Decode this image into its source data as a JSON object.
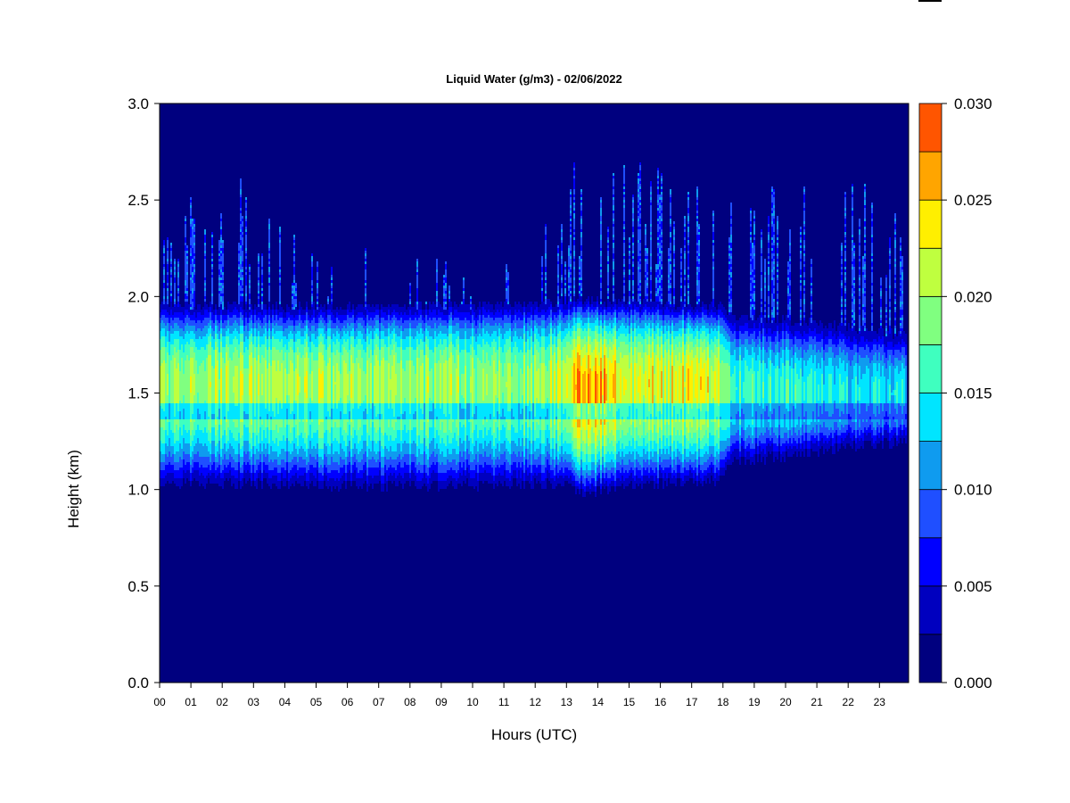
{
  "chart_data": {
    "type": "heatmap",
    "title": "Liquid Water (g/m3) - 02/06/2022",
    "xlabel": "Hours (UTC)",
    "ylabel": "Height (km)",
    "x_tick_labels": [
      "00",
      "01",
      "02",
      "03",
      "04",
      "05",
      "06",
      "07",
      "08",
      "09",
      "10",
      "11",
      "12",
      "13",
      "14",
      "15",
      "16",
      "17",
      "18",
      "19",
      "20",
      "21",
      "22",
      "23"
    ],
    "y_ticks": [
      0.0,
      0.5,
      1.0,
      1.5,
      2.0,
      2.5,
      3.0
    ],
    "y_tick_labels": [
      "0.0",
      "0.5",
      "1.0",
      "1.5",
      "2.0",
      "2.5",
      "3.0"
    ],
    "xlim": [
      0,
      23.85
    ],
    "ylim": [
      0,
      3.0
    ],
    "colorbar": {
      "levels": [
        0.0,
        0.0025,
        0.005,
        0.0075,
        0.01,
        0.0125,
        0.015,
        0.0175,
        0.02,
        0.0225,
        0.025,
        0.0275,
        0.03
      ],
      "colors": [
        "#00007f",
        "#0000bf",
        "#0000ff",
        "#1f4fff",
        "#0f9bef",
        "#00e5ff",
        "#3fffbf",
        "#80ff80",
        "#bfff3f",
        "#ffef00",
        "#ffa500",
        "#ff5500",
        "#ff1500",
        "#c20000",
        "#800000"
      ],
      "tick_values": [
        0.0,
        0.005,
        0.01,
        0.015,
        0.02,
        0.025,
        0.03
      ],
      "tick_labels": [
        "0.000",
        "0.005",
        "0.010",
        "0.015",
        "0.020",
        "0.025",
        "0.030"
      ]
    },
    "cloud_layer": {
      "hours": [
        0,
        3,
        6,
        9,
        12,
        13,
        13.5,
        15,
        16.5,
        17.9,
        18.2,
        20,
        21,
        22,
        23.85
      ],
      "base_km": [
        1.03,
        1.03,
        1.02,
        1.02,
        1.03,
        1.02,
        0.98,
        1.02,
        1.03,
        1.05,
        1.15,
        1.17,
        1.2,
        1.22,
        1.25
      ],
      "top_km": [
        1.95,
        1.95,
        1.95,
        1.95,
        1.96,
        1.98,
        1.98,
        1.97,
        1.96,
        1.95,
        1.9,
        1.88,
        1.86,
        1.84,
        1.8
      ],
      "peak_km": [
        1.55,
        1.55,
        1.55,
        1.55,
        1.55,
        1.55,
        1.52,
        1.55,
        1.55,
        1.55,
        1.52,
        1.5,
        1.5,
        1.5,
        1.5
      ],
      "peak_value": [
        0.02,
        0.021,
        0.02,
        0.02,
        0.02,
        0.022,
        0.027,
        0.023,
        0.023,
        0.022,
        0.017,
        0.016,
        0.015,
        0.014,
        0.014
      ],
      "spike_top_km": [
        2.5,
        2.7,
        2.3,
        2.2,
        2.3,
        2.7,
        2.7,
        2.7,
        2.7,
        2.7,
        2.5,
        2.6,
        2.7,
        2.7,
        2.5
      ]
    }
  }
}
